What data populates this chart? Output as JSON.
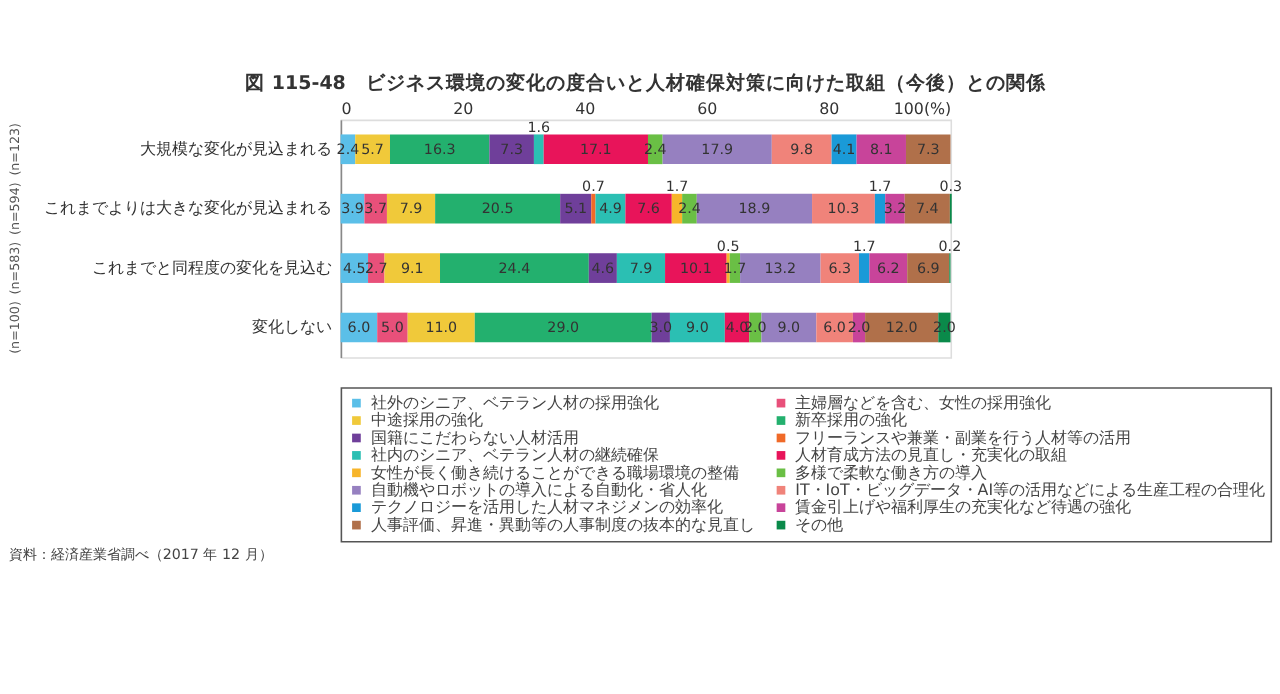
{
  "chart_data": {
    "type": "bar",
    "orientation": "horizontal",
    "stacked": true,
    "grid": false,
    "legend": "bottom",
    "title": "図 115-48　ビジネス環境の変化の度合いと人材確保対策に向けた取組（今後）との関係",
    "categories": [
      "大規模な変化が見込まれる",
      "これまでよりは大きな変化が見込まれる",
      "これまでと同程度の変化を見込む",
      "変化しない"
    ],
    "annotations": [
      "(n=123)",
      "(n=594)",
      "(n=583)",
      "(n=100)",
      "資料：経済産業省調べ（2017 年 12 月）"
    ],
    "xlim": [
      0,
      100
    ],
    "xticks": [
      0,
      20,
      40,
      60,
      80,
      {
        "value": 100,
        "label": "100(%)"
      }
    ],
    "series": [
      {
        "name": "社外のシニア、ベテラン人材の採用強化",
        "color": "#5bbfe8",
        "values": [
          2.4,
          3.9,
          4.5,
          6.0
        ],
        "value_labels": [
          "2.4",
          "3.9",
          "4.5",
          "6.0"
        ]
      },
      {
        "name": "主婦層などを含む、女性の採用強化",
        "color": "#e8507a",
        "values": [
          null,
          3.7,
          2.7,
          5.0
        ],
        "value_labels": [
          null,
          "3.7",
          "2.7",
          "5.0"
        ]
      },
      {
        "name": "中途採用の強化",
        "color": "#f0c93a",
        "values": [
          5.7,
          7.9,
          9.1,
          11.0
        ],
        "value_labels": [
          "5.7",
          "7.9",
          "9.1",
          "11.0"
        ]
      },
      {
        "name": "新卒採用の強化",
        "color": "#23b06e",
        "values": [
          16.3,
          20.5,
          24.4,
          29.0
        ],
        "value_labels": [
          "16.3",
          "20.5",
          "24.4",
          "29.0"
        ]
      },
      {
        "name": "国籍にこだわらない人材活用",
        "color": "#6f3f9a",
        "values": [
          7.3,
          5.1,
          4.6,
          3.0
        ],
        "value_labels": [
          "7.3",
          "5.1",
          "4.6",
          "3.0"
        ]
      },
      {
        "name": "フリーランスや兼業・副業を行う人材等の活用",
        "color": "#f06a28",
        "values": [
          null,
          0.7,
          null,
          null
        ],
        "value_labels": [
          null,
          "0.7",
          null,
          null
        ]
      },
      {
        "name": "社内のシニア、ベテラン人材の継続確保",
        "color": "#2bbfb3",
        "values": [
          1.6,
          4.9,
          7.9,
          9.0
        ],
        "value_labels": [
          "1.6",
          "4.9",
          "7.9",
          "9.0"
        ]
      },
      {
        "name": "人材育成方法の見直し・充実化の取組",
        "color": "#e8145a",
        "values": [
          17.1,
          7.6,
          10.1,
          4.0
        ],
        "value_labels": [
          "17.1",
          "7.6",
          "10.1",
          "4.0"
        ]
      },
      {
        "name": "女性が長く働き続けることができる職場環境の整備",
        "color": "#f7b52a",
        "values": [
          null,
          1.7,
          0.5,
          null
        ],
        "value_labels": [
          null,
          "1.7",
          "0.5",
          null
        ]
      },
      {
        "name": "多様で柔軟な働き方の導入",
        "color": "#6abf45",
        "values": [
          2.4,
          2.4,
          1.7,
          2.0
        ],
        "value_labels": [
          "2.4",
          "2.4",
          "1.7",
          "2.0"
        ]
      },
      {
        "name": "自動機やロボットの導入による自動化・省人化",
        "color": "#9680c0",
        "values": [
          17.9,
          18.9,
          13.2,
          9.0
        ],
        "value_labels": [
          "17.9",
          "18.9",
          "13.2",
          "9.0"
        ]
      },
      {
        "name": "IT・IoT・ビッグデータ・AI等の活用などによる生産工程の合理化",
        "color": "#f0837a",
        "values": [
          9.8,
          10.3,
          6.3,
          6.0
        ],
        "value_labels": [
          "9.8",
          "10.3",
          "6.3",
          "6.0"
        ]
      },
      {
        "name": "テクノロジーを活用した人材マネジメンの効率化",
        "color": "#1a9ad8",
        "values": [
          4.1,
          1.7,
          1.7,
          null
        ],
        "value_labels": [
          "4.1",
          "1.7",
          "1.7",
          null
        ]
      },
      {
        "name": "賃金引上げや福利厚生の充実化など待遇の強化",
        "color": "#c8449a",
        "values": [
          8.1,
          3.2,
          6.2,
          2.0
        ],
        "value_labels": [
          "8.1",
          "3.2",
          "6.2",
          "2.0"
        ]
      },
      {
        "name": "人事評価、昇進・異動等の人事制度の抜本的な見直し",
        "color": "#b0704a",
        "values": [
          7.3,
          7.4,
          6.9,
          12.0
        ],
        "value_labels": [
          "7.3",
          "7.4",
          "6.9",
          "12.0"
        ]
      },
      {
        "name": "その他",
        "color": "#0a8a4a",
        "values": [
          null,
          0.3,
          0.2,
          2.0
        ],
        "value_labels": [
          null,
          "0.3",
          "0.2",
          "2.0"
        ]
      }
    ]
  }
}
